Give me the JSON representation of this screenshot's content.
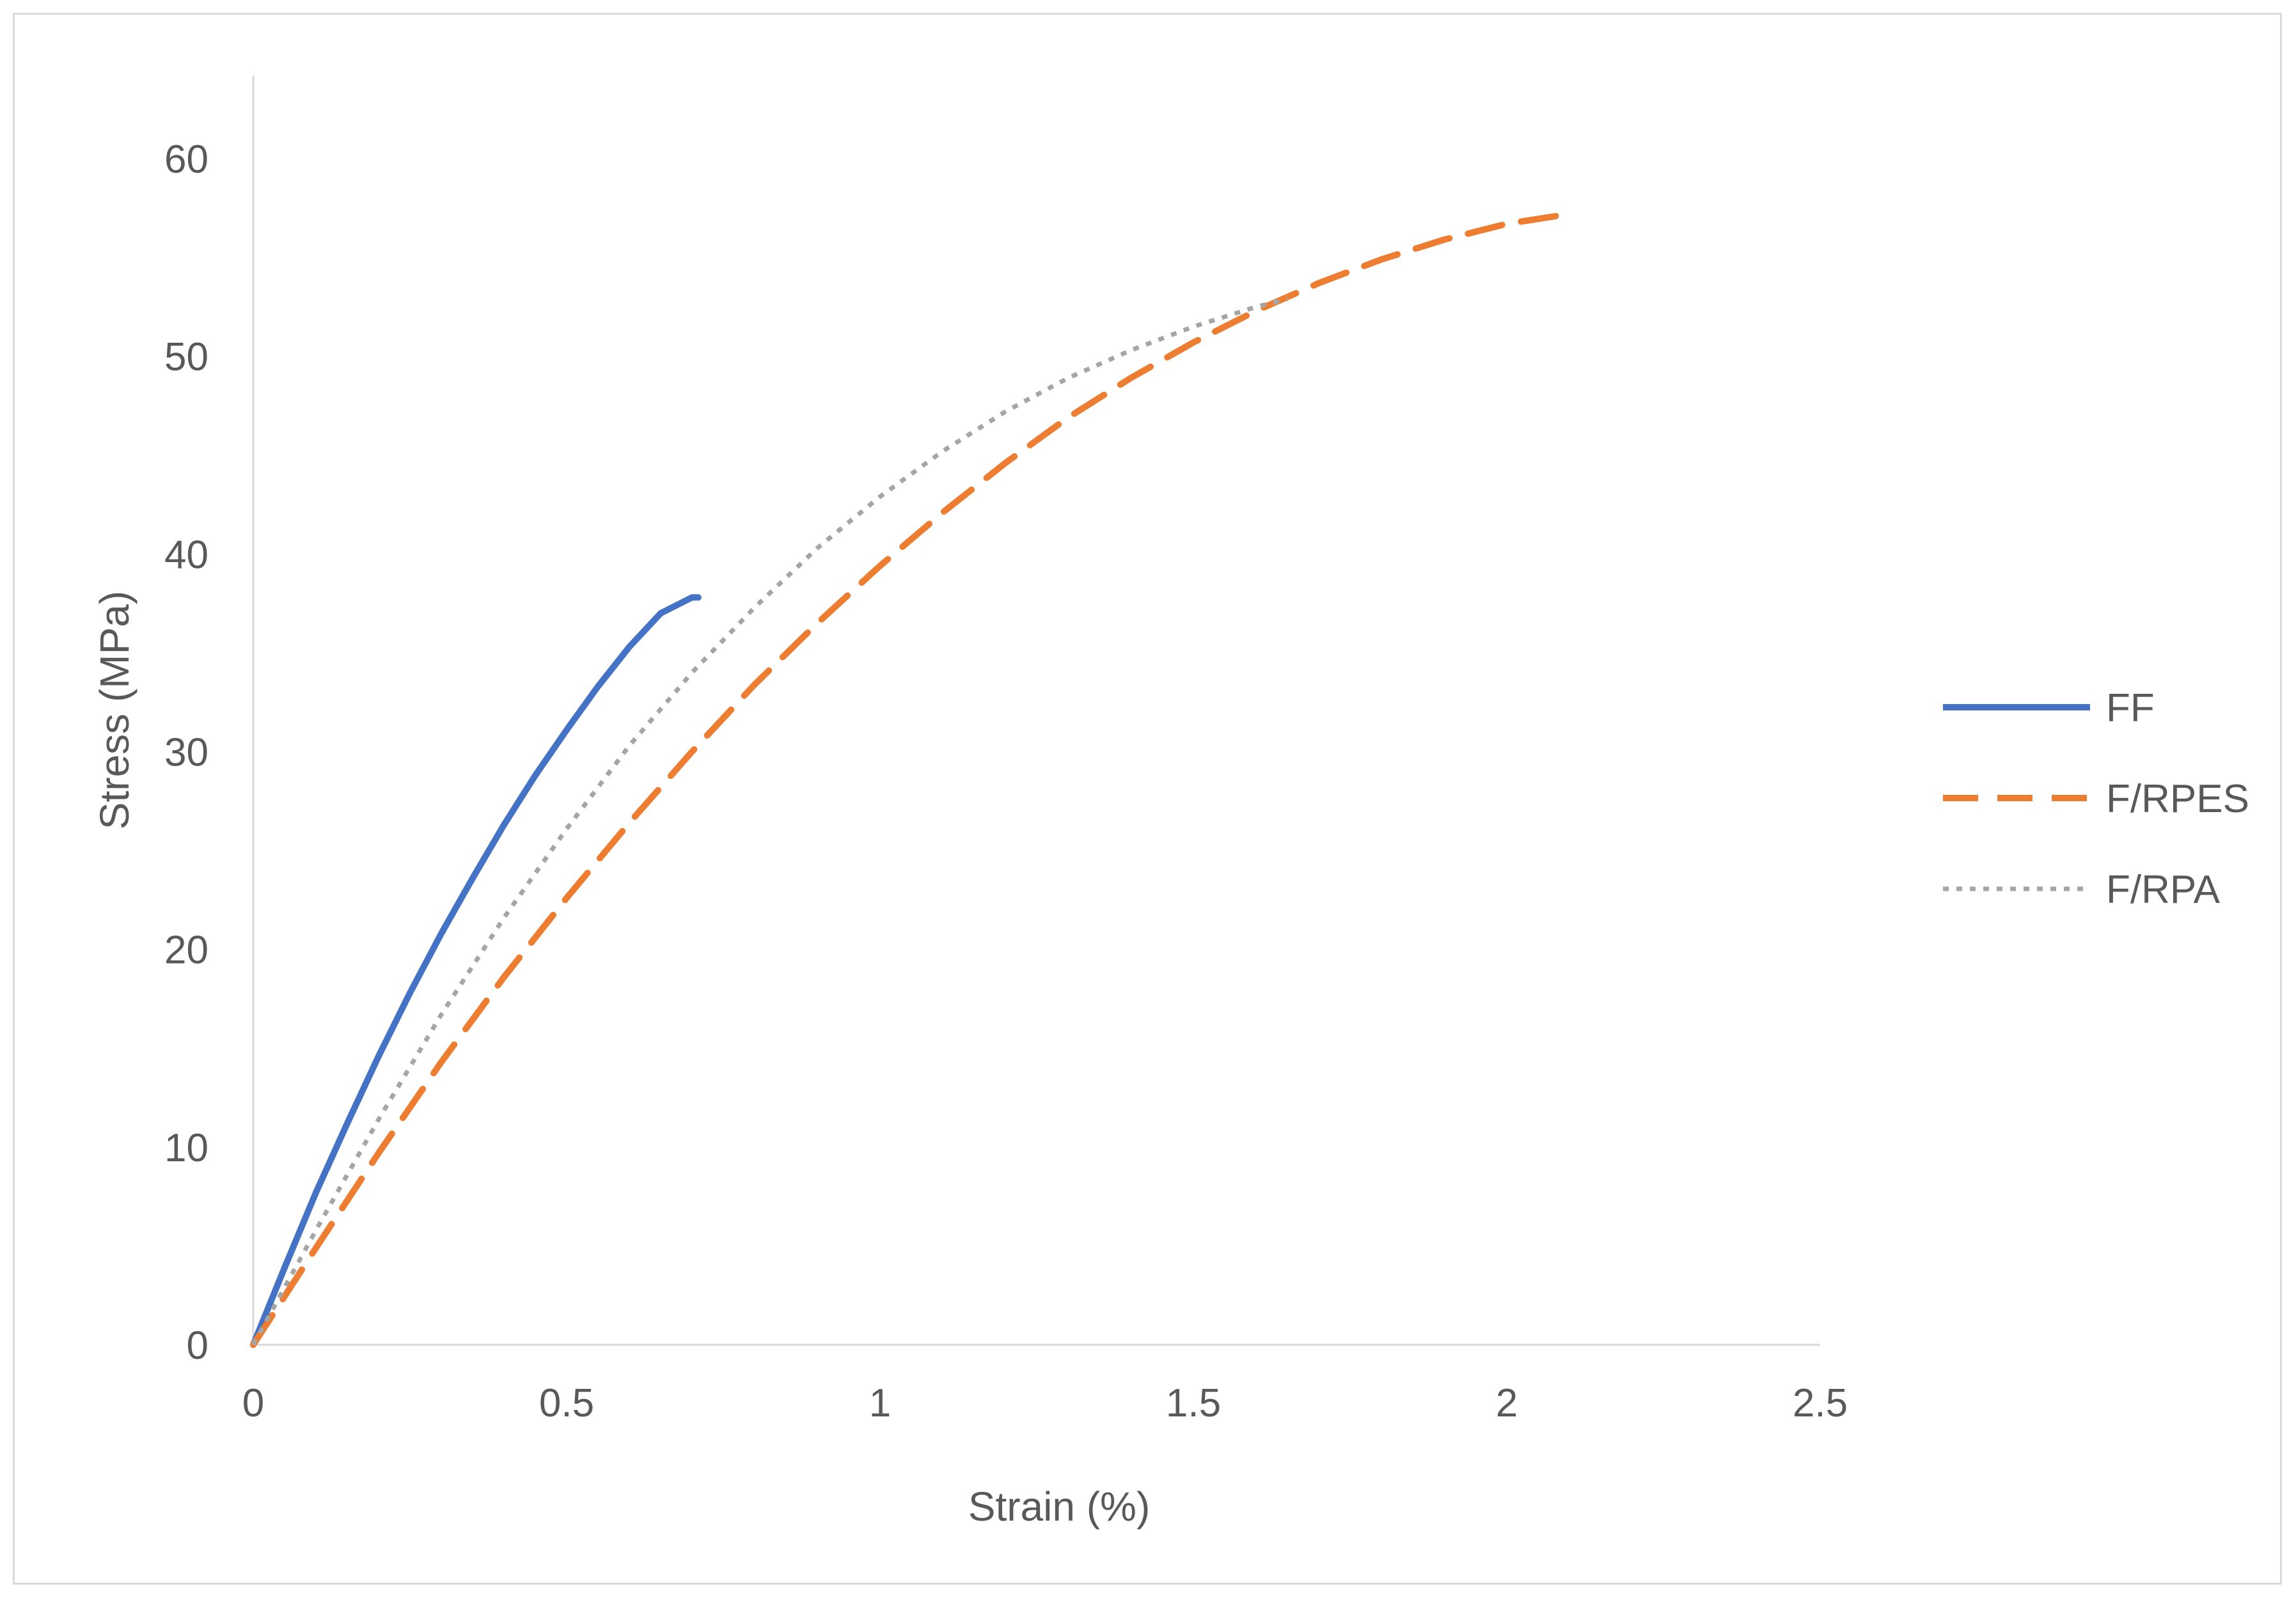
{
  "chart_data": {
    "type": "line",
    "title": "",
    "xlabel": "Strain (%)",
    "ylabel": "Stress (MPa)",
    "xlim": [
      0,
      2.5
    ],
    "ylim": [
      0,
      60
    ],
    "x_ticks": [
      0,
      0.5,
      1,
      1.5,
      2,
      2.5
    ],
    "y_ticks": [
      0,
      10,
      20,
      30,
      40,
      50,
      60
    ],
    "x_tick_labels": [
      "0",
      "0.5",
      "1",
      "1.5",
      "2",
      "2.5"
    ],
    "y_tick_labels": [
      "0",
      "10",
      "20",
      "30",
      "40",
      "50",
      "60"
    ],
    "grid": false,
    "legend_position": "right",
    "series": [
      {
        "name": "FF",
        "color": "#4472c4",
        "style": "solid",
        "x": [
          0,
          0.05,
          0.1,
          0.15,
          0.2,
          0.25,
          0.3,
          0.35,
          0.4,
          0.45,
          0.5,
          0.55,
          0.6,
          0.65,
          0.7,
          0.71
        ],
        "y": [
          0,
          3.9,
          7.7,
          11.2,
          14.6,
          17.8,
          20.8,
          23.6,
          26.3,
          28.8,
          31.1,
          33.3,
          35.3,
          37.0,
          37.8,
          37.8
        ]
      },
      {
        "name": "F/RPES",
        "color": "#ed7d31",
        "style": "dashed",
        "x": [
          0,
          0.1,
          0.2,
          0.3,
          0.4,
          0.5,
          0.6,
          0.7,
          0.8,
          0.9,
          1.0,
          1.1,
          1.2,
          1.3,
          1.4,
          1.5,
          1.6,
          1.7,
          1.8,
          1.9,
          2.0,
          2.1
        ],
        "y": [
          0,
          4.9,
          9.7,
          14.3,
          18.6,
          22.6,
          26.4,
          30.0,
          33.4,
          36.5,
          39.4,
          42.1,
          44.6,
          46.9,
          48.9,
          50.7,
          52.3,
          53.7,
          54.9,
          55.9,
          56.7,
          57.2
        ]
      },
      {
        "name": "F/RPA",
        "color": "#a5a5a5",
        "style": "dotted",
        "x": [
          0,
          0.1,
          0.2,
          0.3,
          0.4,
          0.5,
          0.6,
          0.7,
          0.8,
          0.9,
          1.0,
          1.1,
          1.2,
          1.3,
          1.4,
          1.5,
          1.6,
          1.65
        ],
        "y": [
          0,
          5.8,
          11.4,
          16.7,
          21.6,
          26.1,
          30.3,
          34.0,
          37.3,
          40.3,
          42.9,
          45.2,
          47.2,
          48.9,
          50.3,
          51.5,
          52.5,
          52.9
        ]
      }
    ]
  }
}
